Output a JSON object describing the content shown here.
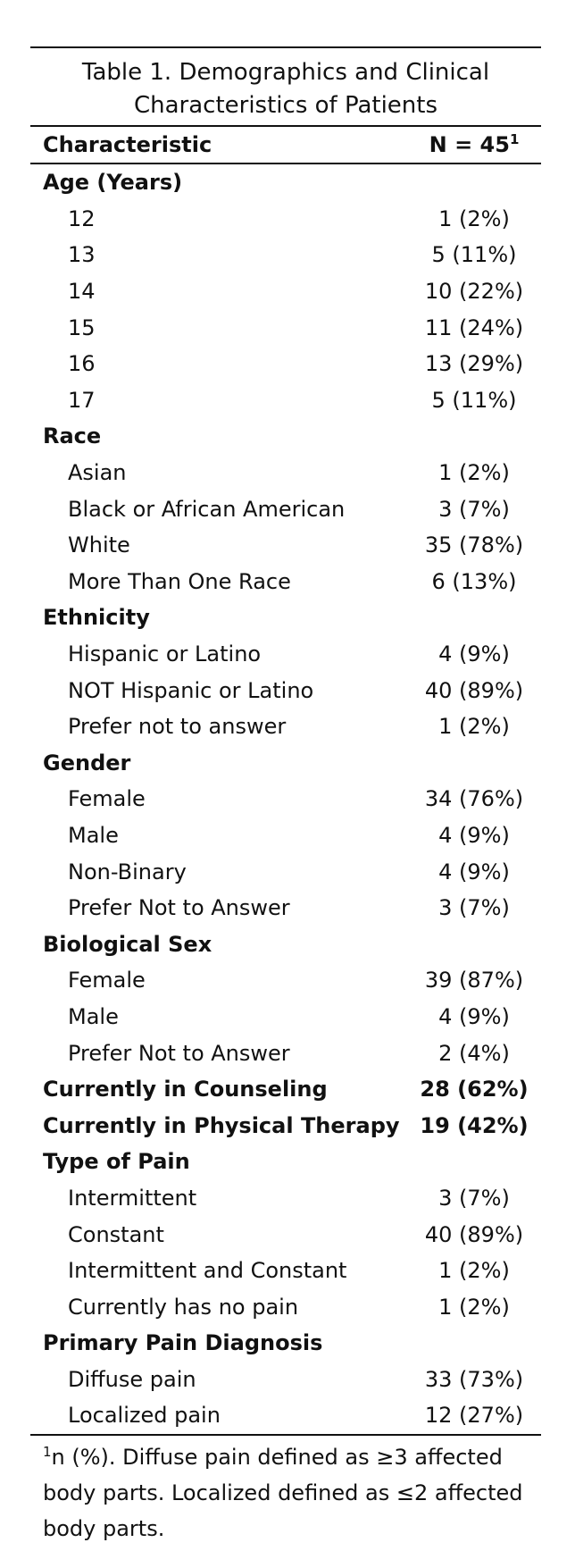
{
  "table": {
    "title_line1": "Table 1. Demographics and Clinical",
    "title_line2": "Characteristics of Patients",
    "header": {
      "characteristic": "Characteristic",
      "n_label": "N = 45",
      "n_sup": "1"
    },
    "rows": [
      {
        "label": "Age (Years)",
        "value": "",
        "type": "group"
      },
      {
        "label": "12",
        "value": "1 (2%)",
        "type": "sub"
      },
      {
        "label": "13",
        "value": "5 (11%)",
        "type": "sub"
      },
      {
        "label": "14",
        "value": "10 (22%)",
        "type": "sub"
      },
      {
        "label": "15",
        "value": "11 (24%)",
        "type": "sub"
      },
      {
        "label": "16",
        "value": "13 (29%)",
        "type": "sub"
      },
      {
        "label": "17",
        "value": "5 (11%)",
        "type": "sub"
      },
      {
        "label": "Race",
        "value": "",
        "type": "group"
      },
      {
        "label": "Asian",
        "value": "1 (2%)",
        "type": "sub"
      },
      {
        "label": "Black or African American",
        "value": "3 (7%)",
        "type": "sub"
      },
      {
        "label": "White",
        "value": "35 (78%)",
        "type": "sub"
      },
      {
        "label": "More Than One Race",
        "value": "6 (13%)",
        "type": "sub"
      },
      {
        "label": "Ethnicity",
        "value": "",
        "type": "group"
      },
      {
        "label": "Hispanic or Latino",
        "value": "4 (9%)",
        "type": "sub"
      },
      {
        "label": "NOT Hispanic or Latino",
        "value": "40 (89%)",
        "type": "sub"
      },
      {
        "label": "Prefer not to answer",
        "value": "1 (2%)",
        "type": "sub"
      },
      {
        "label": "Gender",
        "value": "",
        "type": "group"
      },
      {
        "label": "Female",
        "value": "34 (76%)",
        "type": "sub"
      },
      {
        "label": "Male",
        "value": "4 (9%)",
        "type": "sub"
      },
      {
        "label": "Non-Binary",
        "value": "4 (9%)",
        "type": "sub"
      },
      {
        "label": "Prefer Not to Answer",
        "value": "3 (7%)",
        "type": "sub"
      },
      {
        "label": "Biological Sex",
        "value": "",
        "type": "group"
      },
      {
        "label": "Female",
        "value": "39 (87%)",
        "type": "sub"
      },
      {
        "label": "Male",
        "value": "4 (9%)",
        "type": "sub"
      },
      {
        "label": "Prefer Not to Answer",
        "value": "2 (4%)",
        "type": "sub"
      },
      {
        "label": "Currently in Counseling",
        "value": "28 (62%)",
        "type": "group-value"
      },
      {
        "label": "Currently in Physical Therapy",
        "value": "19 (42%)",
        "type": "group-value"
      },
      {
        "label": "Type of Pain",
        "value": "",
        "type": "group"
      },
      {
        "label": "Intermittent",
        "value": "3 (7%)",
        "type": "sub"
      },
      {
        "label": "Constant",
        "value": "40 (89%)",
        "type": "sub"
      },
      {
        "label": "Intermittent and Constant",
        "value": "1 (2%)",
        "type": "sub"
      },
      {
        "label": "Currently has no pain",
        "value": "1 (2%)",
        "type": "sub"
      },
      {
        "label": "Primary Pain Diagnosis",
        "value": "",
        "type": "group"
      },
      {
        "label": "Diffuse pain",
        "value": "33 (73%)",
        "type": "sub"
      },
      {
        "label": "Localized pain",
        "value": "12 (27%)",
        "type": "sub"
      }
    ],
    "footnote": {
      "marker": "1",
      "text": "n (%). Diffuse pain defined as ≥3 affected body parts. Localized defined as ≤2 affected body parts."
    }
  }
}
